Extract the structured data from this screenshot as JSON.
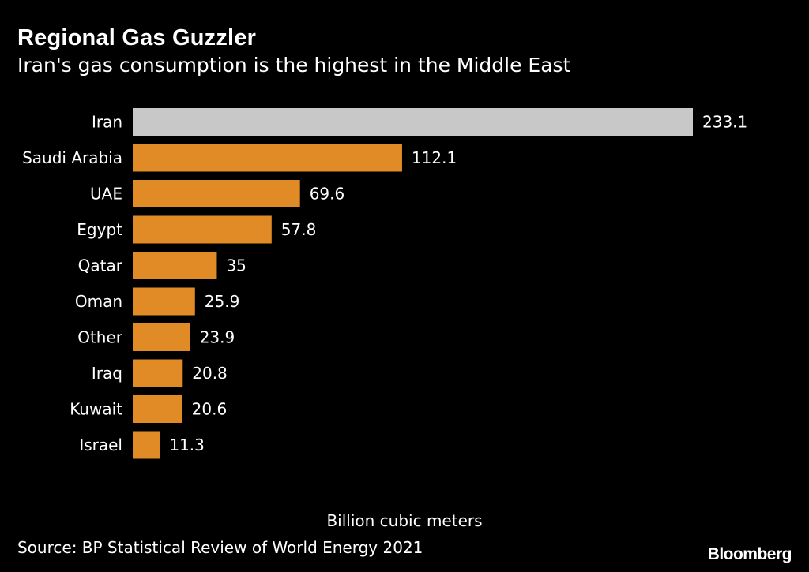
{
  "header": {
    "title": "Regional Gas Guzzler",
    "subtitle": "Iran's gas consumption is the highest in the Middle East"
  },
  "chart_data": {
    "type": "bar",
    "orientation": "horizontal",
    "title": "Regional Gas Guzzler",
    "subtitle": "Iran's gas consumption is the highest in the Middle East",
    "categories": [
      "Iran",
      "Saudi Arabia",
      "UAE",
      "Egypt",
      "Qatar",
      "Oman",
      "Other",
      "Iraq",
      "Kuwait",
      "Israel"
    ],
    "values": [
      233.1,
      112.1,
      69.6,
      57.8,
      35,
      25.9,
      23.9,
      20.8,
      20.6,
      11.3
    ],
    "value_labels": [
      "233.1",
      "112.1",
      "69.6",
      "57.8",
      "35",
      "25.9",
      "23.9",
      "20.8",
      "20.6",
      "11.3"
    ],
    "xlabel": "Billion cubic meters",
    "ylabel": "",
    "xlim": [
      0,
      233.1
    ],
    "grid": false,
    "highlight_category": "Iran",
    "colors": {
      "highlight": "#c8c8c8",
      "default": "#e08b26",
      "text": "#ffffff",
      "background": "#000000"
    }
  },
  "footer": {
    "source": "Source: BP Statistical Review of World Energy 2021",
    "brand": "Bloomberg"
  }
}
